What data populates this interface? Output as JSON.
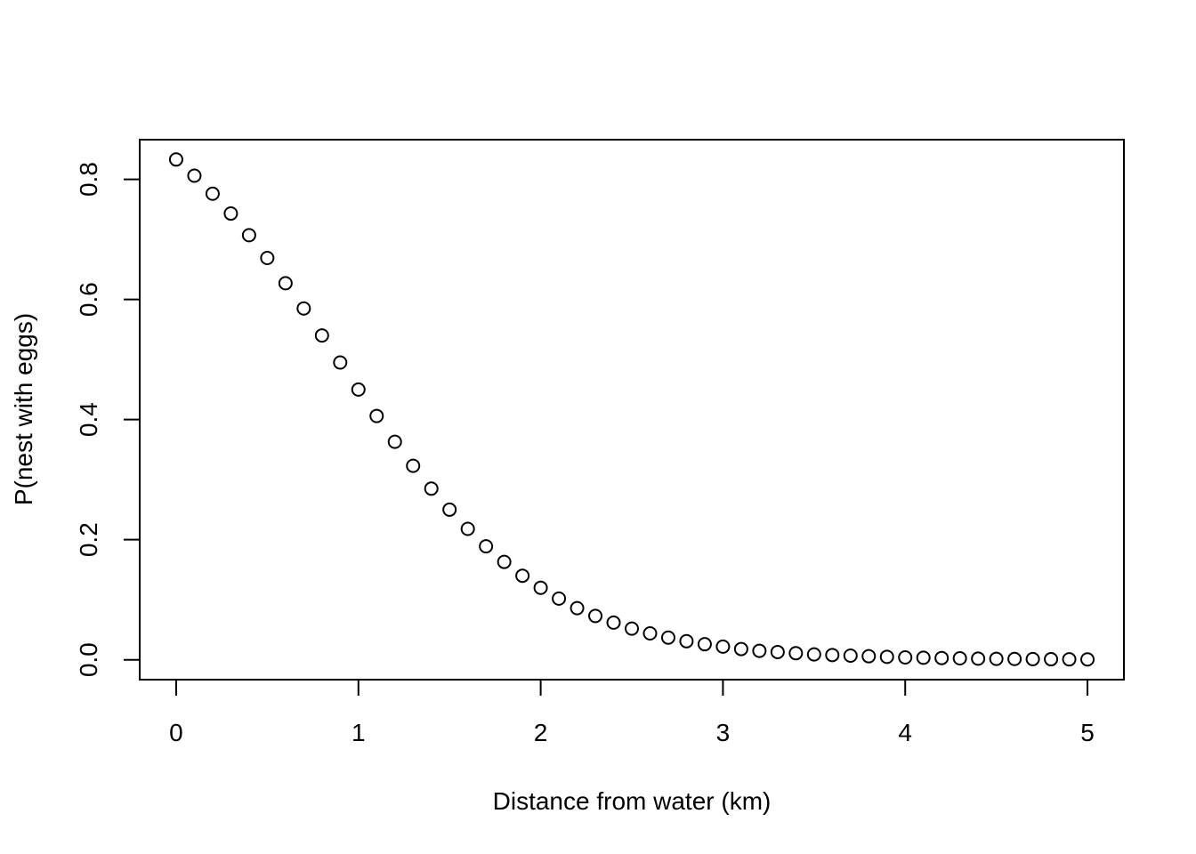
{
  "chart_data": {
    "type": "scatter",
    "title": "",
    "xlabel": "Distance from water (km)",
    "ylabel": "P(nest with eggs)",
    "xlim": [
      -0.2,
      5.2
    ],
    "ylim": [
      -0.033,
      0.866
    ],
    "x_ticks": [
      0,
      1,
      2,
      3,
      4,
      5
    ],
    "x_tick_labels": [
      "0",
      "1",
      "2",
      "3",
      "4",
      "5"
    ],
    "y_ticks": [
      0.0,
      0.2,
      0.4,
      0.6,
      0.8
    ],
    "y_tick_labels": [
      "0.0",
      "0.2",
      "0.4",
      "0.6",
      "0.8"
    ],
    "grid": false,
    "legend": "none",
    "series": [
      {
        "marker": "open-circle",
        "x": [
          0.0,
          0.1,
          0.2,
          0.3,
          0.4,
          0.5,
          0.6,
          0.7,
          0.8,
          0.9,
          1.0,
          1.1,
          1.2,
          1.3,
          1.4,
          1.5,
          1.6,
          1.7,
          1.8,
          1.9,
          2.0,
          2.1,
          2.2,
          2.3,
          2.4,
          2.5,
          2.6,
          2.7,
          2.8,
          2.9,
          3.0,
          3.1,
          3.2,
          3.3,
          3.4,
          3.5,
          3.6,
          3.7,
          3.8,
          3.9,
          4.0,
          4.1,
          4.2,
          4.3,
          4.4,
          4.5,
          4.6,
          4.7,
          4.8,
          4.9,
          5.0
        ],
        "y": [
          0.833,
          0.806,
          0.776,
          0.743,
          0.707,
          0.669,
          0.627,
          0.585,
          0.54,
          0.495,
          0.45,
          0.406,
          0.363,
          0.323,
          0.285,
          0.25,
          0.218,
          0.189,
          0.163,
          0.14,
          0.12,
          0.102,
          0.086,
          0.073,
          0.062,
          0.052,
          0.044,
          0.037,
          0.031,
          0.026,
          0.022,
          0.018,
          0.015,
          0.013,
          0.011,
          0.009,
          0.008,
          0.007,
          0.006,
          0.005,
          0.004,
          0.0035,
          0.003,
          0.0025,
          0.002,
          0.0017,
          0.0014,
          0.0012,
          0.001,
          0.0008,
          0.0007
        ]
      }
    ]
  }
}
